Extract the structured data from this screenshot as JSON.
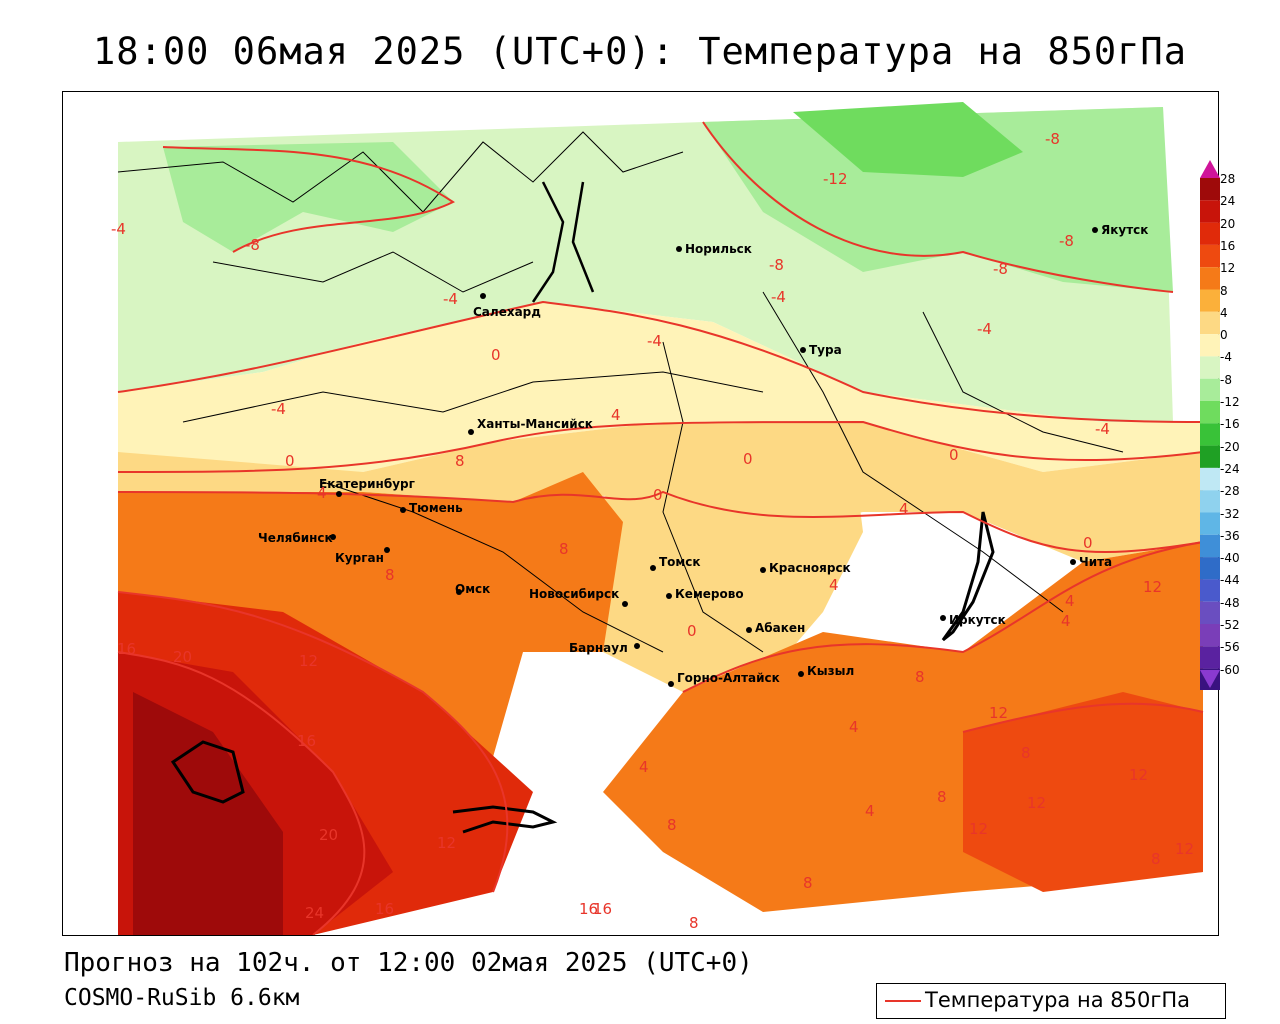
{
  "title": "18:00 06мая 2025 (UTC+0): Температура на 850гПа",
  "footer": {
    "forecast": "Прогноз на 102ч. от 12:00 02мая 2025 (UTC+0)",
    "model": "COSMO-RuSib 6.6км"
  },
  "legend": {
    "label": "Температура на 850гПа",
    "line_color": "#e8352a"
  },
  "colorbar": {
    "labels": [
      "28",
      "24",
      "20",
      "16",
      "12",
      "8",
      "4",
      "0",
      "-4",
      "-8",
      "-12",
      "-16",
      "-20",
      "-24",
      "-28",
      "-32",
      "-36",
      "-40",
      "-44",
      "-48",
      "-52",
      "-56",
      "-60"
    ],
    "colors": [
      "#9e0a0a",
      "#c8140a",
      "#e02a0a",
      "#ee4a10",
      "#f57a18",
      "#fbb03a",
      "#fdd984",
      "#fff3b8",
      "#d8f5c2",
      "#a8ec9a",
      "#6fdc5e",
      "#39c238",
      "#1fa024",
      "#bfe8f4",
      "#8fd2ee",
      "#5fb6e6",
      "#3f8fd8",
      "#2f6cc8",
      "#4a5acc",
      "#6a4ec0",
      "#7a3eb8",
      "#5a22a0",
      "#3a1280"
    ]
  },
  "cities": [
    {
      "name": "Норильск"
    },
    {
      "name": "Якутск"
    },
    {
      "name": "Салехард"
    },
    {
      "name": "Тура"
    },
    {
      "name": "Ханты-Мансийск"
    },
    {
      "name": "Екатеринбург"
    },
    {
      "name": "Тюмень"
    },
    {
      "name": "Челябинск"
    },
    {
      "name": "Курган"
    },
    {
      "name": "Омск"
    },
    {
      "name": "Новосибирск"
    },
    {
      "name": "Томск"
    },
    {
      "name": "Кемерово"
    },
    {
      "name": "Красноярск"
    },
    {
      "name": "Барнаул"
    },
    {
      "name": "Абакен"
    },
    {
      "name": "Горно-Алтайск"
    },
    {
      "name": "Кызыл"
    },
    {
      "name": "Иркутск"
    },
    {
      "name": "Чита"
    }
  ],
  "isotherm_labels": [
    "-12",
    "-8",
    "-8",
    "-8",
    "-8",
    "-8",
    "-4",
    "-4",
    "-4",
    "-4",
    "-4",
    "-4",
    "-4",
    "0",
    "0",
    "0",
    "0",
    "0",
    "0",
    "0",
    "4",
    "4",
    "4",
    "4",
    "4",
    "4",
    "4",
    "4",
    "4",
    "8",
    "8",
    "8",
    "8",
    "8",
    "8",
    "8",
    "8",
    "8",
    "12",
    "12",
    "12",
    "12",
    "12",
    "12",
    "12",
    "12",
    "16",
    "16",
    "16",
    "16",
    "20",
    "20",
    "24",
    "16",
    "8"
  ]
}
